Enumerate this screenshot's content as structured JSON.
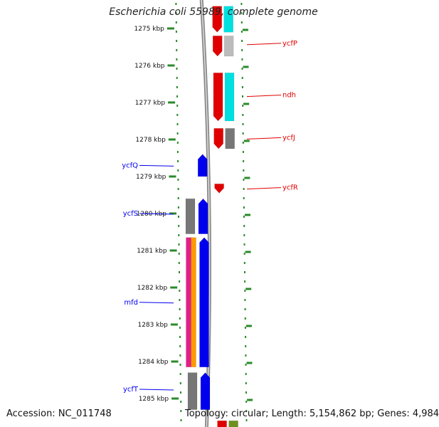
{
  "title": "Escherichia coli 55989, complete genome",
  "footer": {
    "accession": "Accession: NC_011748",
    "summary": "Topology: circular; Length: 5,154,862 bp; Genes: 4,984"
  },
  "colors": {
    "forward_gene": "#0000ee",
    "reverse_gene": "#e00000",
    "cyan_feature": "#00e0e0",
    "gray_feature": "#777777",
    "light_gray_feature": "#bbbbbb",
    "magenta_feature": "#e0208a",
    "orange_feature": "#ff9900",
    "olive_feature": "#6f8f1f",
    "tick": "#2a8a2a",
    "backbone": "#888888"
  },
  "scale": {
    "unit": "kbp",
    "ticks": [
      {
        "value": 1275,
        "label": "1275 kbp"
      },
      {
        "value": 1276,
        "label": "1276 kbp"
      },
      {
        "value": 1277,
        "label": "1277 kbp"
      },
      {
        "value": 1278,
        "label": "1278 kbp"
      },
      {
        "value": 1279,
        "label": "1279 kbp"
      },
      {
        "value": 1280,
        "label": "1280 kbp"
      },
      {
        "value": 1281,
        "label": "1281 kbp"
      },
      {
        "value": 1282,
        "label": "1282 kbp"
      },
      {
        "value": 1283,
        "label": "1283 kbp"
      },
      {
        "value": 1284,
        "label": "1284 kbp"
      },
      {
        "value": 1285,
        "label": "1285 kbp"
      }
    ]
  },
  "features": [
    {
      "lane": "reverse",
      "color_key": "reverse_gene",
      "start": 1274.4,
      "end": 1275.1,
      "arrow": true
    },
    {
      "lane": "reverse_outer",
      "color_key": "cyan_feature",
      "start": 1274.4,
      "end": 1275.1,
      "arrow": false
    },
    {
      "lane": "reverse",
      "color_key": "reverse_gene",
      "start": 1275.2,
      "end": 1275.75,
      "arrow": true
    },
    {
      "lane": "reverse_outer",
      "color_key": "light_gray_feature",
      "start": 1275.2,
      "end": 1275.75,
      "arrow": false
    },
    {
      "lane": "reverse",
      "color_key": "reverse_gene",
      "start": 1276.2,
      "end": 1277.5,
      "arrow": true
    },
    {
      "lane": "reverse_outer",
      "color_key": "cyan_feature",
      "start": 1276.2,
      "end": 1277.5,
      "arrow": false
    },
    {
      "lane": "reverse",
      "color_key": "reverse_gene",
      "start": 1277.7,
      "end": 1278.25,
      "arrow": true
    },
    {
      "lane": "reverse_outer",
      "color_key": "gray_feature",
      "start": 1277.7,
      "end": 1278.25,
      "arrow": false
    },
    {
      "lane": "reverse",
      "color_key": "reverse_gene",
      "start": 1279.2,
      "end": 1279.45,
      "arrow": true
    },
    {
      "lane": "forward",
      "color_key": "forward_gene",
      "start": 1278.4,
      "end": 1279.0,
      "arrow": true
    },
    {
      "lane": "forward_outer",
      "color_key": "gray_feature",
      "start": 1279.6,
      "end": 1280.55,
      "arrow": false
    },
    {
      "lane": "forward",
      "color_key": "forward_gene",
      "start": 1279.6,
      "end": 1280.55,
      "arrow": true
    },
    {
      "lane": "forward_outer_a",
      "color_key": "magenta_feature",
      "start": 1280.65,
      "end": 1284.15,
      "arrow": false
    },
    {
      "lane": "forward_outer_b",
      "color_key": "orange_feature",
      "start": 1280.65,
      "end": 1284.15,
      "arrow": false
    },
    {
      "lane": "forward",
      "color_key": "forward_gene",
      "start": 1280.65,
      "end": 1284.15,
      "arrow": true
    },
    {
      "lane": "forward_outer",
      "color_key": "gray_feature",
      "start": 1284.3,
      "end": 1285.3,
      "arrow": false
    },
    {
      "lane": "forward",
      "color_key": "forward_gene",
      "start": 1284.3,
      "end": 1285.3,
      "arrow": true
    },
    {
      "lane": "reverse",
      "color_key": "reverse_gene",
      "start": 1285.6,
      "end": 1285.9,
      "arrow": false
    },
    {
      "lane": "reverse_outer",
      "color_key": "olive_feature",
      "start": 1285.6,
      "end": 1285.9,
      "arrow": false
    }
  ],
  "gene_labels": [
    {
      "name": "ycfP",
      "side": "right",
      "position": 1275.4
    },
    {
      "name": "ndh",
      "side": "right",
      "position": 1276.8
    },
    {
      "name": "ycfJ",
      "side": "right",
      "position": 1277.95
    },
    {
      "name": "ycfR",
      "side": "right",
      "position": 1279.3
    },
    {
      "name": "ycfQ",
      "side": "left",
      "position": 1278.7
    },
    {
      "name": "ycfS",
      "side": "left",
      "position": 1280.0
    },
    {
      "name": "mfd",
      "side": "left",
      "position": 1282.4
    },
    {
      "name": "ycfT",
      "side": "left",
      "position": 1284.75
    }
  ]
}
